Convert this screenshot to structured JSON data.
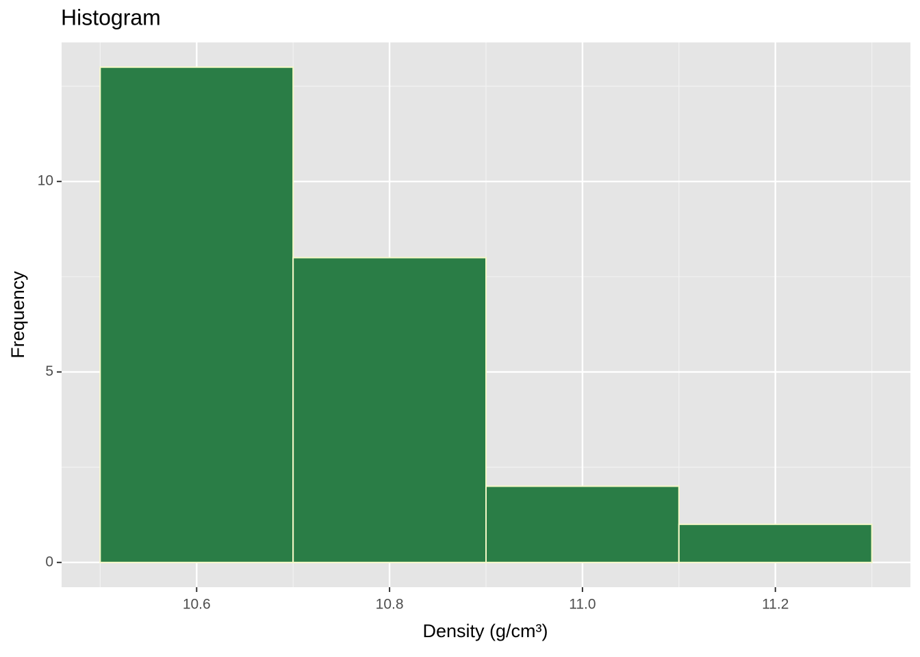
{
  "chart_data": {
    "type": "histogram",
    "title": "Histogram",
    "x_label": "Density (g/cm³)",
    "y_label": "Frequency",
    "bins": [
      10.5,
      10.7,
      10.9,
      11.1,
      11.3
    ],
    "values": [
      13,
      8,
      2,
      1
    ],
    "color": "#2a7d46",
    "edge_color": "#f6f9c8",
    "xlim": [
      10.46,
      11.34
    ],
    "xticks": [
      10.6,
      10.8,
      {
        "value": 11,
        "label": "11.0"
      },
      11.2
    ],
    "minor_xticks": [
      10.5,
      10.7,
      10.9,
      11.1,
      11.3
    ],
    "ylim": [
      -0.65,
      13.65
    ],
    "yticks": [
      0,
      5,
      10
    ],
    "minor_yticks": [
      2.5,
      7.5,
      12.5
    ],
    "grid": true
  }
}
